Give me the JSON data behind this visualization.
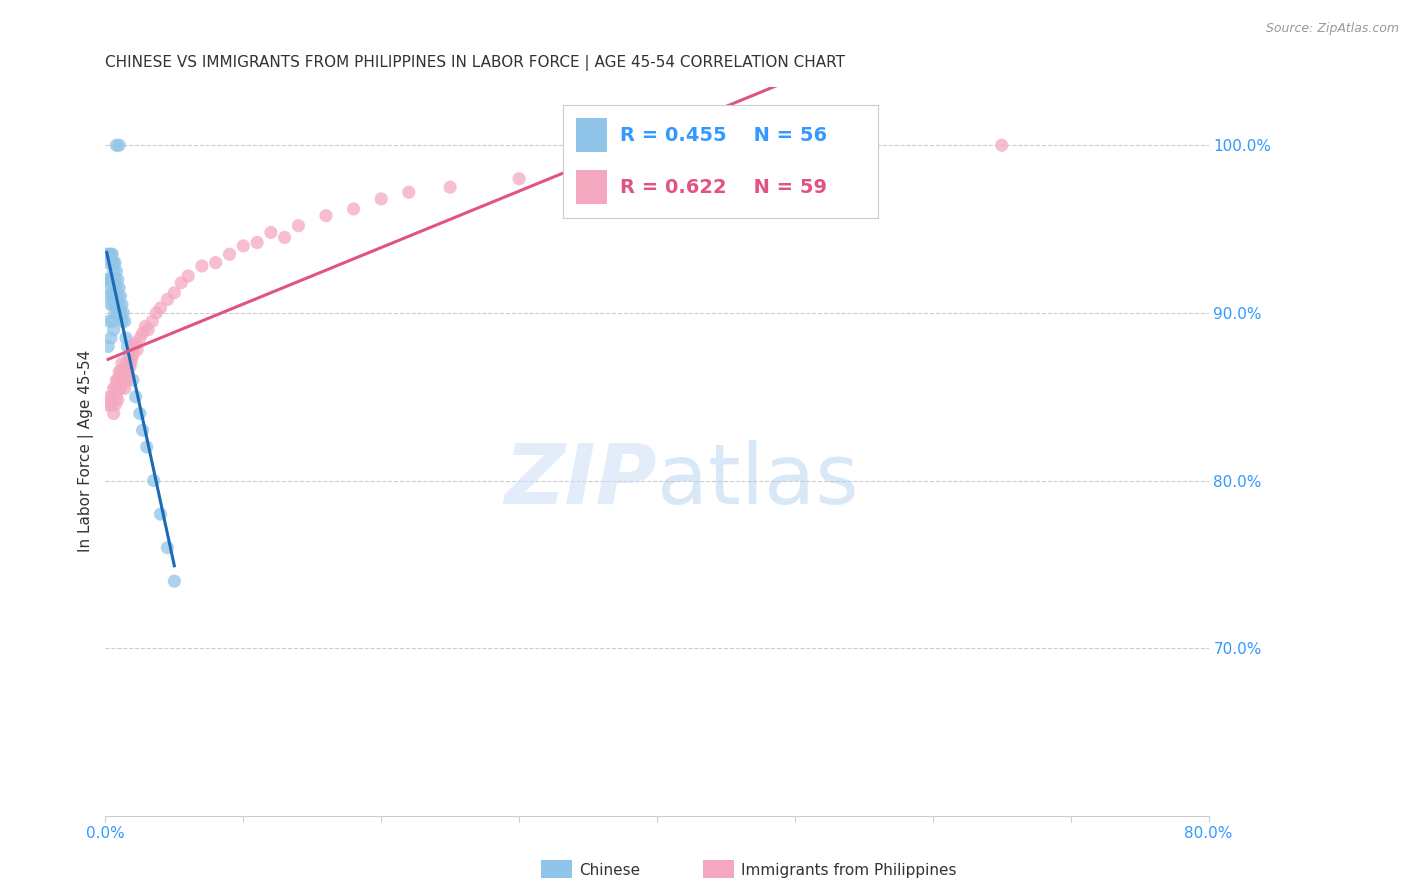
{
  "title": "CHINESE VS IMMIGRANTS FROM PHILIPPINES IN LABOR FORCE | AGE 45-54 CORRELATION CHART",
  "source": "Source: ZipAtlas.com",
  "ylabel": "In Labor Force | Age 45-54",
  "xlim": [
    0.0,
    0.8
  ],
  "ylim": [
    0.6,
    1.035
  ],
  "xticks": [
    0.0,
    0.1,
    0.2,
    0.3,
    0.4,
    0.5,
    0.6,
    0.7,
    0.8
  ],
  "xticklabels": [
    "0.0%",
    "",
    "",
    "",
    "",
    "",
    "",
    "",
    "80.0%"
  ],
  "yticks_right": [
    0.7,
    0.8,
    0.9,
    1.0
  ],
  "yticklabels_right": [
    "70.0%",
    "80.0%",
    "90.0%",
    "100.0%"
  ],
  "grid_color": "#cccccc",
  "background_color": "#ffffff",
  "chinese_color": "#90c4e8",
  "philippines_color": "#f4a8bf",
  "chinese_line_color": "#1a6ab5",
  "philippines_line_color": "#e05580",
  "legend_R1": "R = 0.455",
  "legend_N1": "N = 56",
  "legend_R2": "R = 0.622",
  "legend_N2": "N = 59",
  "legend_label1": "Chinese",
  "legend_label2": "Immigrants from Philippines",
  "chinese_x": [
    0.001,
    0.001,
    0.002,
    0.002,
    0.002,
    0.003,
    0.003,
    0.003,
    0.003,
    0.004,
    0.004,
    0.004,
    0.004,
    0.005,
    0.005,
    0.005,
    0.005,
    0.005,
    0.006,
    0.006,
    0.006,
    0.006,
    0.006,
    0.007,
    0.007,
    0.007,
    0.007,
    0.008,
    0.008,
    0.008,
    0.009,
    0.009,
    0.009,
    0.01,
    0.01,
    0.011,
    0.011,
    0.012,
    0.012,
    0.013,
    0.014,
    0.015,
    0.016,
    0.017,
    0.018,
    0.02,
    0.022,
    0.025,
    0.027,
    0.03,
    0.035,
    0.04,
    0.045,
    0.05,
    0.008,
    0.01
  ],
  "chinese_y": [
    0.935,
    0.92,
    0.93,
    0.915,
    0.88,
    0.935,
    0.92,
    0.91,
    0.895,
    0.935,
    0.92,
    0.905,
    0.885,
    0.935,
    0.93,
    0.92,
    0.91,
    0.895,
    0.93,
    0.925,
    0.915,
    0.905,
    0.89,
    0.93,
    0.92,
    0.91,
    0.9,
    0.925,
    0.915,
    0.905,
    0.92,
    0.91,
    0.9,
    0.915,
    0.905,
    0.91,
    0.9,
    0.905,
    0.895,
    0.9,
    0.895,
    0.885,
    0.88,
    0.875,
    0.87,
    0.86,
    0.85,
    0.84,
    0.83,
    0.82,
    0.8,
    0.78,
    0.76,
    0.74,
    1.0,
    1.0
  ],
  "philippines_x": [
    0.002,
    0.003,
    0.004,
    0.005,
    0.006,
    0.006,
    0.007,
    0.007,
    0.008,
    0.008,
    0.009,
    0.009,
    0.01,
    0.01,
    0.011,
    0.011,
    0.012,
    0.012,
    0.013,
    0.013,
    0.014,
    0.014,
    0.015,
    0.015,
    0.016,
    0.017,
    0.018,
    0.019,
    0.02,
    0.021,
    0.022,
    0.023,
    0.025,
    0.027,
    0.029,
    0.031,
    0.034,
    0.037,
    0.04,
    0.045,
    0.05,
    0.055,
    0.06,
    0.07,
    0.08,
    0.09,
    0.1,
    0.12,
    0.14,
    0.16,
    0.18,
    0.2,
    0.22,
    0.25,
    0.3,
    0.35,
    0.13,
    0.11,
    0.65
  ],
  "philippines_y": [
    0.845,
    0.85,
    0.845,
    0.85,
    0.855,
    0.84,
    0.855,
    0.845,
    0.86,
    0.85,
    0.86,
    0.848,
    0.865,
    0.855,
    0.865,
    0.855,
    0.87,
    0.86,
    0.865,
    0.858,
    0.865,
    0.855,
    0.87,
    0.86,
    0.865,
    0.862,
    0.868,
    0.872,
    0.875,
    0.88,
    0.882,
    0.878,
    0.885,
    0.888,
    0.892,
    0.89,
    0.895,
    0.9,
    0.903,
    0.908,
    0.912,
    0.918,
    0.922,
    0.928,
    0.93,
    0.935,
    0.94,
    0.948,
    0.952,
    0.958,
    0.962,
    0.968,
    0.972,
    0.975,
    0.98,
    0.985,
    0.945,
    0.942,
    1.0
  ],
  "title_fontsize": 11,
  "axis_label_fontsize": 11,
  "tick_fontsize": 11,
  "legend_fontsize": 13,
  "source_fontsize": 9
}
